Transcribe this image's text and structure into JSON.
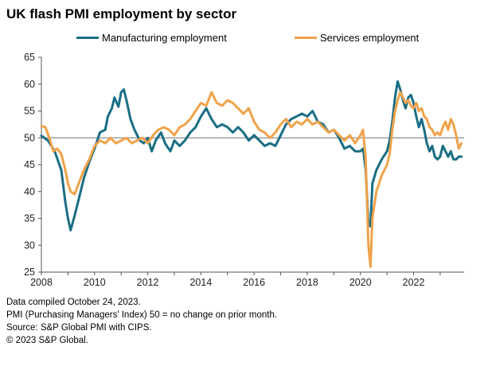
{
  "title": "UK flash PMI employment by sector",
  "chart_data": {
    "type": "line",
    "title": "UK flash PMI employment by sector",
    "xlabel": "",
    "ylabel": "",
    "xlim": [
      2008,
      2023.9
    ],
    "ylim": [
      25,
      65
    ],
    "y_ticks": [
      25,
      30,
      35,
      40,
      45,
      50,
      55,
      60,
      65
    ],
    "x_ticks": [
      2008,
      2010,
      2012,
      2014,
      2016,
      2018,
      2020,
      2022
    ],
    "reference_line": 50,
    "legend_position": "top",
    "series": [
      {
        "name": "Manufacturing employment",
        "color": "#1a6e84",
        "points": [
          [
            2008.0,
            50.4
          ],
          [
            2008.25,
            49.5
          ],
          [
            2008.5,
            47.5
          ],
          [
            2008.75,
            44.0
          ],
          [
            2008.9,
            38.0
          ],
          [
            2009.0,
            35.0
          ],
          [
            2009.1,
            32.8
          ],
          [
            2009.25,
            35.5
          ],
          [
            2009.4,
            38.5
          ],
          [
            2009.6,
            42.5
          ],
          [
            2009.8,
            45.5
          ],
          [
            2010.0,
            48.0
          ],
          [
            2010.2,
            51.0
          ],
          [
            2010.4,
            51.5
          ],
          [
            2010.5,
            54.0
          ],
          [
            2010.65,
            55.5
          ],
          [
            2010.75,
            57.5
          ],
          [
            2010.9,
            55.8
          ],
          [
            2011.0,
            58.5
          ],
          [
            2011.1,
            59.0
          ],
          [
            2011.2,
            57.0
          ],
          [
            2011.35,
            53.5
          ],
          [
            2011.5,
            51.5
          ],
          [
            2011.7,
            49.5
          ],
          [
            2011.85,
            49.0
          ],
          [
            2012.0,
            50.0
          ],
          [
            2012.15,
            47.5
          ],
          [
            2012.3,
            49.5
          ],
          [
            2012.5,
            51.0
          ],
          [
            2012.65,
            49.0
          ],
          [
            2012.85,
            47.5
          ],
          [
            2013.0,
            49.5
          ],
          [
            2013.2,
            48.5
          ],
          [
            2013.4,
            49.5
          ],
          [
            2013.6,
            51.0
          ],
          [
            2013.8,
            52.0
          ],
          [
            2014.0,
            54.0
          ],
          [
            2014.2,
            55.5
          ],
          [
            2014.4,
            53.5
          ],
          [
            2014.6,
            52.0
          ],
          [
            2014.8,
            52.5
          ],
          [
            2015.0,
            52.0
          ],
          [
            2015.2,
            51.0
          ],
          [
            2015.4,
            52.0
          ],
          [
            2015.6,
            51.0
          ],
          [
            2015.8,
            49.5
          ],
          [
            2016.0,
            50.5
          ],
          [
            2016.2,
            49.5
          ],
          [
            2016.4,
            48.5
          ],
          [
            2016.6,
            49.0
          ],
          [
            2016.8,
            48.5
          ],
          [
            2017.0,
            50.5
          ],
          [
            2017.2,
            52.5
          ],
          [
            2017.4,
            53.5
          ],
          [
            2017.6,
            54.0
          ],
          [
            2017.8,
            54.5
          ],
          [
            2018.0,
            54.0
          ],
          [
            2018.2,
            55.0
          ],
          [
            2018.4,
            53.0
          ],
          [
            2018.6,
            52.5
          ],
          [
            2018.8,
            51.0
          ],
          [
            2019.0,
            51.5
          ],
          [
            2019.2,
            50.0
          ],
          [
            2019.4,
            48.0
          ],
          [
            2019.6,
            48.5
          ],
          [
            2019.8,
            47.5
          ],
          [
            2020.0,
            47.5
          ],
          [
            2020.1,
            48.0
          ],
          [
            2020.2,
            44.0
          ],
          [
            2020.3,
            34.0
          ],
          [
            2020.38,
            33.5
          ],
          [
            2020.45,
            41.5
          ],
          [
            2020.6,
            44.0
          ],
          [
            2020.8,
            46.0
          ],
          [
            2021.0,
            47.5
          ],
          [
            2021.1,
            49.5
          ],
          [
            2021.2,
            53.0
          ],
          [
            2021.3,
            57.5
          ],
          [
            2021.4,
            60.5
          ],
          [
            2021.5,
            59.0
          ],
          [
            2021.6,
            57.0
          ],
          [
            2021.7,
            55.5
          ],
          [
            2021.8,
            57.5
          ],
          [
            2021.9,
            58.0
          ],
          [
            2022.0,
            56.5
          ],
          [
            2022.1,
            54.0
          ],
          [
            2022.2,
            52.0
          ],
          [
            2022.3,
            53.5
          ],
          [
            2022.4,
            51.5
          ],
          [
            2022.5,
            49.0
          ],
          [
            2022.6,
            47.5
          ],
          [
            2022.7,
            48.5
          ],
          [
            2022.8,
            46.5
          ],
          [
            2022.9,
            46.0
          ],
          [
            2023.0,
            46.5
          ],
          [
            2023.1,
            48.5
          ],
          [
            2023.2,
            47.5
          ],
          [
            2023.3,
            46.5
          ],
          [
            2023.4,
            47.5
          ],
          [
            2023.5,
            46.0
          ],
          [
            2023.6,
            46.0
          ],
          [
            2023.7,
            46.5
          ],
          [
            2023.8,
            46.5
          ]
        ]
      },
      {
        "name": "Services employment",
        "color": "#f0a24a",
        "points": [
          [
            2008.0,
            52.2
          ],
          [
            2008.15,
            52.0
          ],
          [
            2008.3,
            50.0
          ],
          [
            2008.45,
            47.5
          ],
          [
            2008.6,
            48.0
          ],
          [
            2008.75,
            47.0
          ],
          [
            2008.9,
            44.0
          ],
          [
            2009.0,
            41.5
          ],
          [
            2009.1,
            40.0
          ],
          [
            2009.25,
            39.5
          ],
          [
            2009.4,
            41.5
          ],
          [
            2009.6,
            44.0
          ],
          [
            2009.8,
            46.0
          ],
          [
            2010.0,
            48.5
          ],
          [
            2010.2,
            49.5
          ],
          [
            2010.4,
            49.0
          ],
          [
            2010.6,
            50.0
          ],
          [
            2010.8,
            49.0
          ],
          [
            2011.0,
            49.5
          ],
          [
            2011.2,
            50.0
          ],
          [
            2011.4,
            49.0
          ],
          [
            2011.6,
            49.5
          ],
          [
            2011.8,
            50.0
          ],
          [
            2012.0,
            49.0
          ],
          [
            2012.2,
            50.5
          ],
          [
            2012.4,
            51.5
          ],
          [
            2012.6,
            52.0
          ],
          [
            2012.8,
            51.5
          ],
          [
            2013.0,
            50.5
          ],
          [
            2013.2,
            52.0
          ],
          [
            2013.4,
            52.5
          ],
          [
            2013.6,
            53.5
          ],
          [
            2013.8,
            55.0
          ],
          [
            2014.0,
            56.5
          ],
          [
            2014.2,
            56.0
          ],
          [
            2014.4,
            58.5
          ],
          [
            2014.6,
            56.5
          ],
          [
            2014.8,
            56.0
          ],
          [
            2015.0,
            57.0
          ],
          [
            2015.2,
            56.5
          ],
          [
            2015.4,
            55.5
          ],
          [
            2015.6,
            54.5
          ],
          [
            2015.8,
            55.5
          ],
          [
            2016.0,
            53.0
          ],
          [
            2016.2,
            51.5
          ],
          [
            2016.4,
            51.0
          ],
          [
            2016.6,
            50.0
          ],
          [
            2016.8,
            51.0
          ],
          [
            2017.0,
            52.5
          ],
          [
            2017.2,
            53.5
          ],
          [
            2017.4,
            52.0
          ],
          [
            2017.6,
            53.0
          ],
          [
            2017.8,
            52.5
          ],
          [
            2018.0,
            53.5
          ],
          [
            2018.2,
            52.5
          ],
          [
            2018.4,
            53.0
          ],
          [
            2018.6,
            52.0
          ],
          [
            2018.8,
            51.0
          ],
          [
            2019.0,
            51.5
          ],
          [
            2019.2,
            50.5
          ],
          [
            2019.4,
            49.5
          ],
          [
            2019.6,
            50.5
          ],
          [
            2019.8,
            49.0
          ],
          [
            2020.0,
            50.5
          ],
          [
            2020.1,
            51.5
          ],
          [
            2020.2,
            46.0
          ],
          [
            2020.3,
            30.0
          ],
          [
            2020.38,
            26.0
          ],
          [
            2020.45,
            35.0
          ],
          [
            2020.6,
            40.0
          ],
          [
            2020.8,
            43.0
          ],
          [
            2021.0,
            45.0
          ],
          [
            2021.1,
            47.0
          ],
          [
            2021.2,
            51.5
          ],
          [
            2021.3,
            55.0
          ],
          [
            2021.4,
            57.0
          ],
          [
            2021.5,
            58.5
          ],
          [
            2021.6,
            57.5
          ],
          [
            2021.7,
            56.5
          ],
          [
            2021.8,
            57.0
          ],
          [
            2021.9,
            56.0
          ],
          [
            2022.0,
            55.5
          ],
          [
            2022.1,
            56.5
          ],
          [
            2022.2,
            55.0
          ],
          [
            2022.3,
            55.5
          ],
          [
            2022.4,
            54.0
          ],
          [
            2022.5,
            53.5
          ],
          [
            2022.6,
            52.0
          ],
          [
            2022.7,
            51.5
          ],
          [
            2022.8,
            50.5
          ],
          [
            2022.9,
            51.0
          ],
          [
            2023.0,
            50.5
          ],
          [
            2023.1,
            52.0
          ],
          [
            2023.2,
            53.0
          ],
          [
            2023.3,
            51.5
          ],
          [
            2023.4,
            53.5
          ],
          [
            2023.5,
            52.5
          ],
          [
            2023.6,
            50.5
          ],
          [
            2023.7,
            48.0
          ],
          [
            2023.8,
            49.0
          ]
        ]
      }
    ]
  },
  "footnotes": [
    "Data compiled October 24, 2023.",
    "PMI (Purchasing Managers' Index) 50 = no change on prior month.",
    "Source: S&P Global PMI with CIPS.",
    "© 2023 S&P Global."
  ]
}
